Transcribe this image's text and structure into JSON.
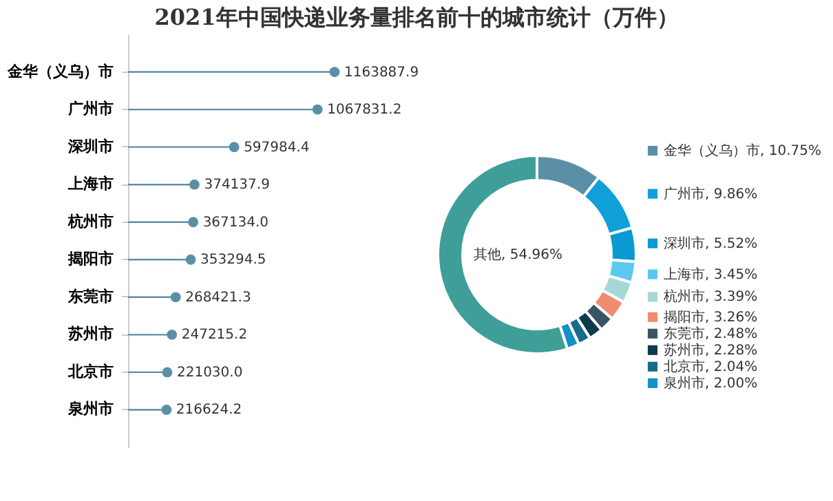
{
  "chart_data": [
    {
      "type": "lollipop",
      "title": "2021年中国快递业务量排名前十的城市统计（万件）",
      "orientation": "horizontal",
      "color": "#5b8fa8",
      "categories": [
        "金华（义乌）市",
        "广州市",
        "深圳市",
        "上海市",
        "杭州市",
        "揭阳市",
        "东莞市",
        "苏州市",
        "北京市",
        "泉州市"
      ],
      "values": [
        1163887.9,
        1067831.2,
        597984.4,
        374137.9,
        367134.0,
        353294.5,
        268421.3,
        247215.2,
        221030.0,
        216624.2
      ],
      "value_labels": [
        "1163887.9",
        "1067831.2",
        "597984.4",
        "374137.9",
        "367134.0",
        "353294.5",
        "268421.3",
        "247215.2",
        "221030.0",
        "216624.2"
      ],
      "tick_labels": "y"
    },
    {
      "type": "donut",
      "legend": "right",
      "categories": [
        "金华（义乌）市",
        "广州市",
        "深圳市",
        "上海市",
        "杭州市",
        "揭阳市",
        "东莞市",
        "苏州市",
        "北京市",
        "泉州市",
        "其他"
      ],
      "values": [
        10.75,
        9.86,
        5.52,
        3.45,
        3.39,
        3.26,
        2.48,
        2.28,
        2.04,
        2.0,
        54.96
      ],
      "value_labels": [
        "10.75%",
        "9.86%",
        "5.52%",
        "3.45%",
        "3.39%",
        "3.26%",
        "2.48%",
        "2.28%",
        "2.04%",
        "2.00%",
        "54.96%"
      ],
      "colors": [
        "#5b8fa8",
        "#0fa0d8",
        "#0b9ad2",
        "#5bc8f0",
        "#a6d8d6",
        "#f08c70",
        "#3a5562",
        "#0d3a4d",
        "#1a6a8a",
        "#1590c8",
        "#3f9e98"
      ]
    }
  ]
}
